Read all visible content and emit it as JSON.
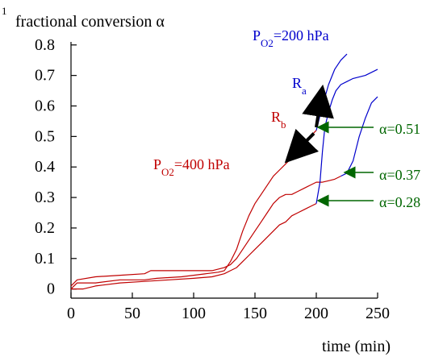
{
  "chart_data": {
    "type": "line",
    "title": "",
    "ylabel_prefix": "1",
    "ylabel": "fractional conversion α",
    "xlabel": "time (min)",
    "xlim": [
      0,
      250
    ],
    "ylim": [
      -0.03,
      0.81
    ],
    "xticks": [
      0,
      50,
      100,
      150,
      200,
      250
    ],
    "yticks": [
      0,
      0.1,
      0.2,
      0.3,
      0.4,
      0.5,
      0.6,
      0.7,
      0.8
    ],
    "xtick_labels": [
      "0",
      "50",
      "100",
      "150",
      "200",
      "250"
    ],
    "ytick_labels": [
      "0",
      "0.1",
      "0.2",
      "0.3",
      "0.4",
      "0.5",
      "0.6",
      "0.7",
      "0.8"
    ],
    "grid": false,
    "colors": {
      "axis": "#000000",
      "red": "#c00000",
      "blue": "#0000cc",
      "green": "#006600",
      "black_arrow": "#000000"
    },
    "series": [
      {
        "color": "red",
        "points": [
          [
            0,
            0.0
          ],
          [
            5,
            0.02
          ],
          [
            10,
            0.02
          ],
          [
            20,
            0.02
          ],
          [
            40,
            0.03
          ],
          [
            60,
            0.03
          ],
          [
            70,
            0.035
          ],
          [
            90,
            0.04
          ],
          [
            110,
            0.05
          ],
          [
            120,
            0.055
          ],
          [
            125,
            0.06
          ],
          [
            130,
            0.09
          ],
          [
            135,
            0.13
          ],
          [
            140,
            0.19
          ],
          [
            145,
            0.24
          ],
          [
            150,
            0.28
          ],
          [
            155,
            0.31
          ],
          [
            160,
            0.34
          ],
          [
            165,
            0.37
          ],
          [
            170,
            0.39
          ],
          [
            175,
            0.41
          ],
          [
            180,
            0.43
          ],
          [
            185,
            0.45
          ],
          [
            190,
            0.48
          ],
          [
            195,
            0.5
          ],
          [
            200,
            0.52
          ]
        ]
      },
      {
        "color": "red",
        "points": [
          [
            0,
            0.01
          ],
          [
            5,
            0.03
          ],
          [
            20,
            0.04
          ],
          [
            40,
            0.045
          ],
          [
            60,
            0.05
          ],
          [
            65,
            0.06
          ],
          [
            80,
            0.06
          ],
          [
            100,
            0.06
          ],
          [
            115,
            0.06
          ],
          [
            125,
            0.07
          ],
          [
            130,
            0.08
          ],
          [
            135,
            0.1
          ],
          [
            140,
            0.13
          ],
          [
            145,
            0.16
          ],
          [
            150,
            0.19
          ],
          [
            155,
            0.22
          ],
          [
            160,
            0.25
          ],
          [
            165,
            0.28
          ],
          [
            170,
            0.3
          ],
          [
            175,
            0.31
          ],
          [
            180,
            0.31
          ],
          [
            185,
            0.32
          ],
          [
            190,
            0.33
          ],
          [
            195,
            0.34
          ],
          [
            200,
            0.35
          ],
          [
            205,
            0.35
          ],
          [
            210,
            0.355
          ],
          [
            215,
            0.36
          ],
          [
            220,
            0.37
          ]
        ]
      },
      {
        "color": "red",
        "points": [
          [
            0,
            0.0
          ],
          [
            10,
            0.0
          ],
          [
            20,
            0.01
          ],
          [
            40,
            0.02
          ],
          [
            60,
            0.025
          ],
          [
            80,
            0.03
          ],
          [
            100,
            0.035
          ],
          [
            115,
            0.04
          ],
          [
            125,
            0.05
          ],
          [
            130,
            0.06
          ],
          [
            135,
            0.07
          ],
          [
            140,
            0.09
          ],
          [
            145,
            0.11
          ],
          [
            150,
            0.13
          ],
          [
            155,
            0.15
          ],
          [
            160,
            0.17
          ],
          [
            165,
            0.19
          ],
          [
            170,
            0.21
          ],
          [
            175,
            0.22
          ],
          [
            180,
            0.24
          ],
          [
            185,
            0.25
          ],
          [
            190,
            0.26
          ],
          [
            195,
            0.27
          ],
          [
            200,
            0.28
          ]
        ]
      },
      {
        "color": "blue",
        "points": [
          [
            200,
            0.28
          ],
          [
            203,
            0.35
          ],
          [
            205,
            0.45
          ],
          [
            207,
            0.53
          ],
          [
            210,
            0.58
          ],
          [
            213,
            0.62
          ],
          [
            216,
            0.65
          ],
          [
            220,
            0.67
          ],
          [
            225,
            0.68
          ],
          [
            230,
            0.69
          ],
          [
            240,
            0.7
          ],
          [
            250,
            0.72
          ]
        ]
      },
      {
        "color": "blue",
        "points": [
          [
            200,
            0.52
          ],
          [
            205,
            0.6
          ],
          [
            210,
            0.67
          ],
          [
            215,
            0.72
          ],
          [
            220,
            0.75
          ],
          [
            225,
            0.77
          ]
        ]
      },
      {
        "color": "blue",
        "points": [
          [
            220,
            0.37
          ],
          [
            225,
            0.38
          ],
          [
            230,
            0.42
          ],
          [
            235,
            0.5
          ],
          [
            240,
            0.56
          ],
          [
            245,
            0.61
          ],
          [
            250,
            0.63
          ]
        ]
      }
    ],
    "annotations": [
      {
        "text": "P",
        "sub": "O2",
        "rest": "=200 hPa",
        "color": "blue"
      },
      {
        "text": "R",
        "sub": "a",
        "rest": "",
        "color": "blue"
      },
      {
        "text": "R",
        "sub": "b",
        "rest": "",
        "color": "red"
      },
      {
        "text": "P",
        "sub": "O2",
        "rest": "=400 hPa",
        "color": "red"
      },
      {
        "text": "α",
        "sub": "",
        "rest": "=0.51",
        "color": "green"
      },
      {
        "text": "α",
        "sub": "",
        "rest": "=0.37",
        "color": "green"
      },
      {
        "text": "α",
        "sub": "",
        "rest": "=0.28",
        "color": "green"
      }
    ]
  }
}
